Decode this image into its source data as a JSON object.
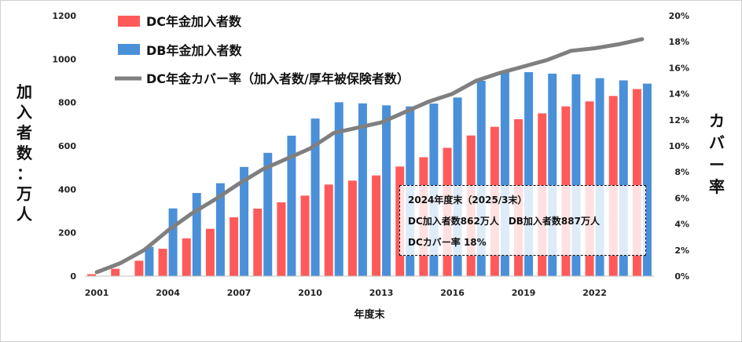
{
  "chart_data": {
    "type": "bar+line",
    "categories": [
      "2001",
      "2002",
      "2003",
      "2004",
      "2005",
      "2006",
      "2007",
      "2008",
      "2009",
      "2010",
      "2011",
      "2012",
      "2013",
      "2014",
      "2015",
      "2016",
      "2017",
      "2018",
      "2019",
      "2020",
      "2021",
      "2022",
      "2023",
      "2024"
    ],
    "x_tick_labels": [
      "2001",
      "2004",
      "2007",
      "2010",
      "2013",
      "2016",
      "2019",
      "2022"
    ],
    "series": [
      {
        "name": "DC年金加入者数",
        "type": "bar",
        "axis": "left",
        "color": "#ff5a5a",
        "values": [
          9,
          34,
          71,
          126,
          174,
          218,
          271,
          311,
          340,
          371,
          422,
          440,
          464,
          505,
          548,
          591,
          648,
          688,
          723,
          750,
          782,
          805,
          830,
          862
        ]
      },
      {
        "name": "DB年金加入者数",
        "type": "bar",
        "axis": "left",
        "color": "#4a90d9",
        "values": [
          0,
          0,
          135,
          312,
          383,
          428,
          503,
          568,
          647,
          726,
          801,
          796,
          787,
          782,
          795,
          823,
          900,
          938,
          940,
          933,
          930,
          912,
          902,
          887
        ]
      },
      {
        "name": "DC年金カバー率（加入者数/厚年被保険者数）",
        "type": "line",
        "axis": "right",
        "color": "#7f7f7f",
        "values": [
          0.3,
          1.0,
          2.0,
          3.5,
          4.8,
          5.9,
          7.1,
          8.2,
          9.0,
          9.8,
          11.0,
          11.4,
          11.8,
          12.6,
          13.4,
          14.0,
          15.0,
          15.6,
          16.1,
          16.6,
          17.3,
          17.5,
          17.8,
          18.2
        ]
      }
    ],
    "y_left": {
      "min": 0,
      "max": 1200,
      "step": 200,
      "ticks": [
        "0",
        "200",
        "400",
        "600",
        "800",
        "1000",
        "1200"
      ],
      "label": "加入者数：万人"
    },
    "y_right": {
      "min": 0,
      "max": 20,
      "step": 2,
      "ticks": [
        "0%",
        "2%",
        "4%",
        "6%",
        "8%",
        "10%",
        "12%",
        "14%",
        "16%",
        "18%",
        "20%"
      ],
      "label": "カバー率"
    },
    "xlabel": "年度末",
    "legend_position": "top-left"
  },
  "note": {
    "line1": "2024年度末（2025/3末）",
    "line2": "DC加入者数862万人　DB加入者数887万人",
    "line3": "DCカバー率 18%"
  }
}
